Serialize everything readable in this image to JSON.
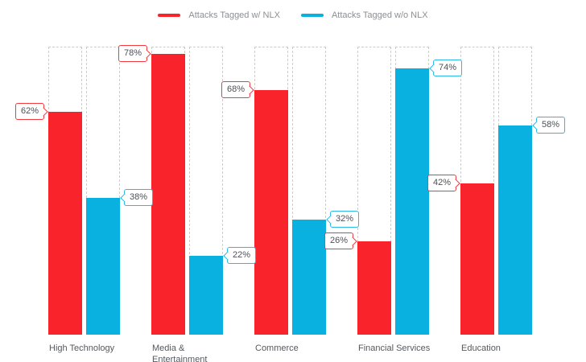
{
  "legend": {
    "items": [
      {
        "label": "Attacks Tagged w/ NLX",
        "color": "#f9242b"
      },
      {
        "label": "Attacks Tagged w/o NLX",
        "color": "#08b1e0"
      }
    ]
  },
  "chart_data": {
    "type": "bar",
    "title": "",
    "xlabel": "",
    "ylabel": "",
    "value_unit": "%",
    "ylim": [
      0,
      80
    ],
    "grid": false,
    "legend_position": "top",
    "categories": [
      "High Technology",
      "Media & Entertainment",
      "Commerce",
      "Financial Services",
      "Education"
    ],
    "series": [
      {
        "name": "Attacks Tagged w/ NLX",
        "color": "#f9242b",
        "values": [
          62,
          78,
          68,
          26,
          42
        ]
      },
      {
        "name": "Attacks Tagged w/o NLX",
        "color": "#08b1e0",
        "values": [
          38,
          22,
          32,
          74,
          58
        ]
      }
    ],
    "groups": [
      {
        "category": "High Technology",
        "with_nlx": 62,
        "with_nlx_label": "62%",
        "without_nlx": 38,
        "without_nlx_label": "38%"
      },
      {
        "category": "Media & Entertainment",
        "with_nlx": 78,
        "with_nlx_label": "78%",
        "without_nlx": 22,
        "without_nlx_label": "22%"
      },
      {
        "category": "Commerce",
        "with_nlx": 68,
        "with_nlx_label": "68%",
        "without_nlx": 32,
        "without_nlx_label": "32%"
      },
      {
        "category": "Financial Services",
        "with_nlx": 26,
        "with_nlx_label": "26%",
        "without_nlx": 74,
        "without_nlx_label": "74%"
      },
      {
        "category": "Education",
        "with_nlx": 42,
        "with_nlx_label": "42%",
        "without_nlx": 58,
        "without_nlx_label": "58%"
      }
    ]
  }
}
